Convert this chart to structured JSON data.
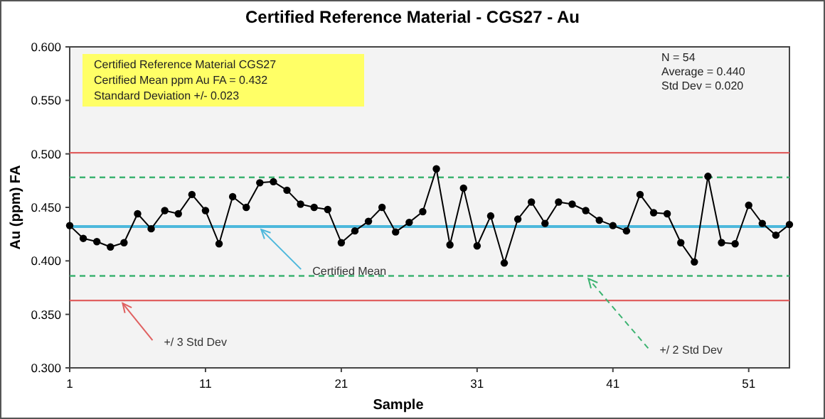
{
  "chart_data": {
    "type": "line",
    "title": "Certified Reference Material - CGS27 - Au",
    "xlabel": "Sample",
    "ylabel": "Au (ppm) FA",
    "x": [
      1,
      2,
      3,
      4,
      5,
      6,
      7,
      8,
      9,
      10,
      11,
      12,
      13,
      14,
      15,
      16,
      17,
      18,
      19,
      20,
      21,
      22,
      23,
      24,
      25,
      26,
      27,
      28,
      29,
      30,
      31,
      32,
      33,
      34,
      35,
      36,
      37,
      38,
      39,
      40,
      41,
      42,
      43,
      44,
      45,
      46,
      47,
      48,
      49,
      50,
      51,
      52,
      53,
      54
    ],
    "series": [
      {
        "color": "#000000",
        "values": [
          0.433,
          0.421,
          0.418,
          0.413,
          0.417,
          0.444,
          0.43,
          0.447,
          0.444,
          0.462,
          0.447,
          0.416,
          0.46,
          0.45,
          0.473,
          0.474,
          0.466,
          0.453,
          0.45,
          0.448,
          0.417,
          0.428,
          0.437,
          0.45,
          0.427,
          0.436,
          0.446,
          0.486,
          0.415,
          0.468,
          0.414,
          0.442,
          0.398,
          0.439,
          0.455,
          0.435,
          0.455,
          0.453,
          0.447,
          0.438,
          0.433,
          0.428,
          0.462,
          0.445,
          0.444,
          0.417,
          0.399,
          0.479,
          0.417,
          0.416,
          0.452,
          0.435,
          0.424,
          0.434
        ]
      }
    ],
    "xlim": [
      1,
      54
    ],
    "xticks": [
      1,
      11,
      21,
      31,
      41,
      51
    ],
    "ylim": [
      0.3,
      0.6
    ],
    "yticks": [
      {
        "value": 0.3,
        "label": "0.300"
      },
      {
        "value": 0.35,
        "label": "0.350"
      },
      {
        "value": 0.4,
        "label": "0.400"
      },
      {
        "value": 0.45,
        "label": "0.450"
      },
      {
        "value": 0.5,
        "label": "0.500"
      },
      {
        "value": 0.55,
        "label": "0.550"
      },
      {
        "value": 0.6,
        "label": "0.600"
      }
    ],
    "marker": "circle",
    "line_style": "solid",
    "grid": false,
    "ref_lines": [
      {
        "axis": "y",
        "value": 0.432,
        "label": "Certified Mean",
        "color": "#4db8dc",
        "line_style": "solid"
      },
      {
        "axis": "y",
        "value": 0.478,
        "label": null,
        "color": "#3cb371",
        "line_style": "dashed"
      },
      {
        "axis": "y",
        "value": 0.386,
        "label": "+/ 2 Std Dev",
        "color": "#3cb371",
        "line_style": "dashed"
      },
      {
        "axis": "y",
        "value": 0.501,
        "label": null,
        "color": "#e06060",
        "line_style": "solid"
      },
      {
        "axis": "y",
        "value": 0.363,
        "label": "+/ 3 Std Dev",
        "color": "#e06060",
        "line_style": "solid"
      }
    ],
    "annotations": [
      "Certified Reference Material CGS27",
      "Certified Mean ppm Au FA  = 0.432",
      "Standard Deviation  +/- 0.023",
      "N = 54",
      "Average = 0.440",
      "Std Dev = 0.020"
    ]
  }
}
